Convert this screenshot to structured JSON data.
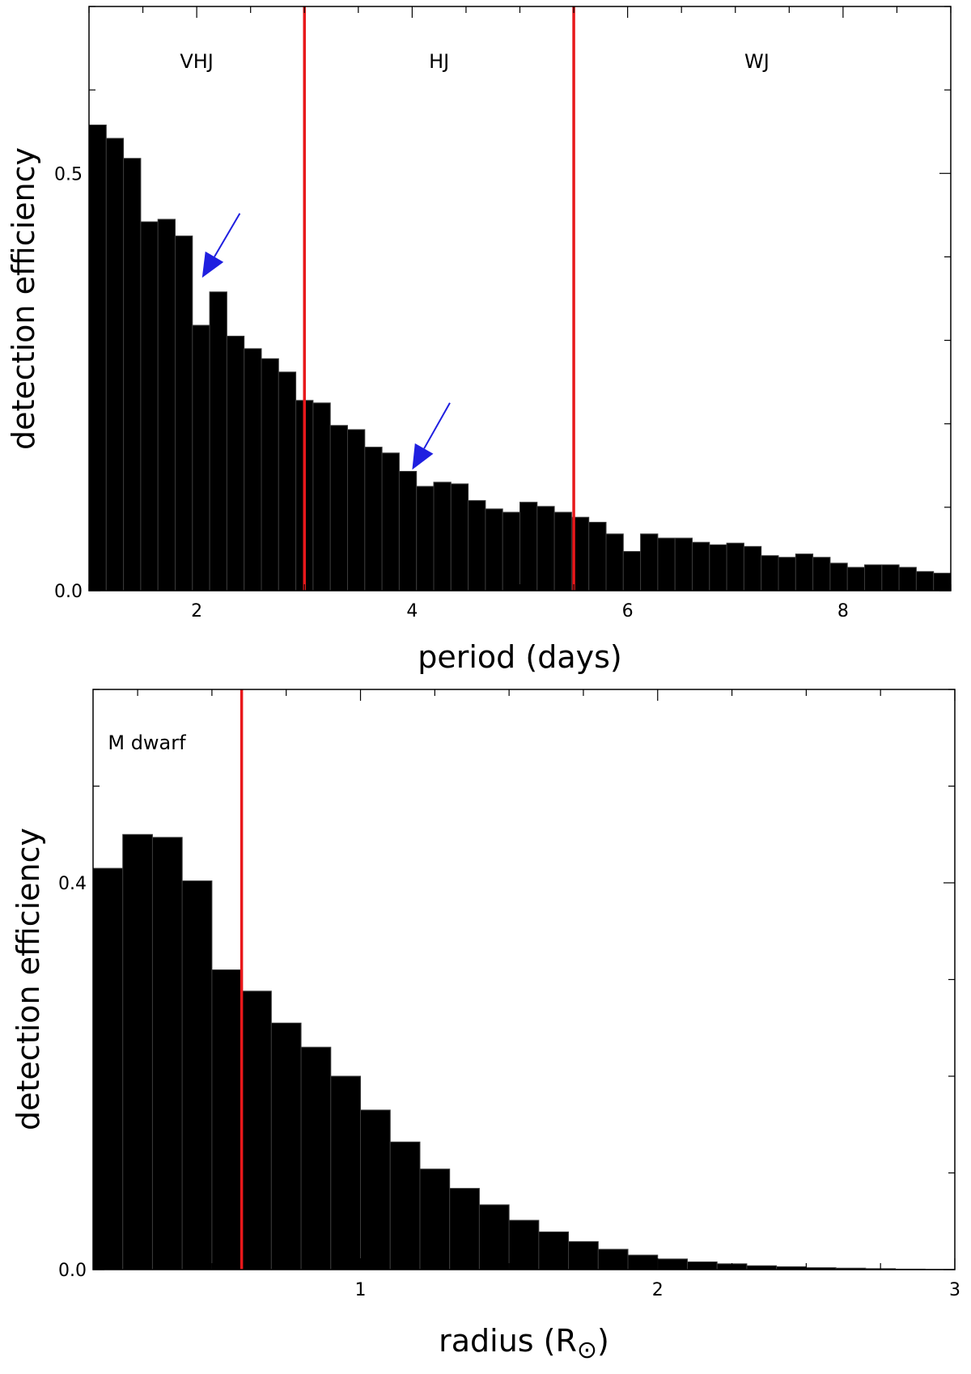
{
  "chart_data": [
    {
      "type": "bar",
      "title": "",
      "xlabel": "period (days)",
      "ylabel": "detection efficiency",
      "xlim": [
        1.0,
        9.0
      ],
      "ylim": [
        0.0,
        0.7
      ],
      "x_ticks": [
        2,
        4,
        6,
        8
      ],
      "y_ticks": [
        0.0,
        0.5
      ],
      "y_tick_labels": [
        "0.0",
        "0.5"
      ],
      "bin_start": 1.0,
      "bin_width": 0.16,
      "values": [
        0.558,
        0.542,
        0.518,
        0.442,
        0.445,
        0.425,
        0.318,
        0.358,
        0.305,
        0.29,
        0.278,
        0.262,
        0.228,
        0.225,
        0.198,
        0.193,
        0.172,
        0.165,
        0.143,
        0.125,
        0.13,
        0.128,
        0.108,
        0.098,
        0.094,
        0.106,
        0.101,
        0.094,
        0.088,
        0.082,
        0.068,
        0.047,
        0.068,
        0.063,
        0.063,
        0.058,
        0.055,
        0.057,
        0.053,
        0.042,
        0.04,
        0.044,
        0.04,
        0.033,
        0.028,
        0.031,
        0.031,
        0.028,
        0.023,
        0.021
      ],
      "vlines": [
        3.0,
        5.5
      ],
      "vline_color": "#e8181b",
      "regions": [
        {
          "label": "VHJ",
          "x": 2.0
        },
        {
          "label": "HJ",
          "x": 4.25
        },
        {
          "label": "WJ",
          "x": 7.2
        }
      ],
      "arrows": [
        {
          "tip": [
            2.05,
            0.375
          ],
          "tail": [
            2.4,
            0.452
          ]
        },
        {
          "tip": [
            4.0,
            0.145
          ],
          "tail": [
            4.35,
            0.225
          ]
        }
      ],
      "arrow_color": "#1f1fe0",
      "bar_color": "#000000"
    },
    {
      "type": "bar",
      "title": "",
      "xlabel": "radius (R⊙)",
      "xlabel_main": "radius (R",
      "xlabel_symbol": "⊙",
      "xlabel_close": ")",
      "ylabel": "detection efficiency",
      "xlim": [
        0.1,
        3.0
      ],
      "ylim": [
        0.0,
        0.6
      ],
      "x_ticks": [
        1,
        2,
        3
      ],
      "y_ticks": [
        0.0,
        0.4
      ],
      "y_tick_labels": [
        "0.0",
        "0.4"
      ],
      "bin_start": 0.1,
      "bin_width": 0.1,
      "values": [
        0.415,
        0.45,
        0.447,
        0.402,
        0.31,
        0.288,
        0.255,
        0.23,
        0.2,
        0.165,
        0.132,
        0.104,
        0.084,
        0.067,
        0.051,
        0.039,
        0.029,
        0.021,
        0.015,
        0.011,
        0.008,
        0.006,
        0.004,
        0.003,
        0.002,
        0.0015,
        0.001,
        0.0005,
        0.0003
      ],
      "vlines": [
        0.6
      ],
      "vline_color": "#e8181b",
      "regions": [
        {
          "label": "M dwarf",
          "x": 0.15
        }
      ],
      "bar_color": "#000000"
    }
  ]
}
